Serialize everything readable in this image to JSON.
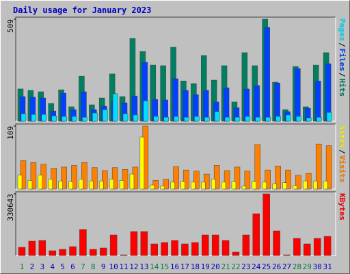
{
  "title": "Daily usage for January 2023",
  "legend_separator": "/",
  "chart_data": [
    {
      "type": "bar",
      "ylim": [
        0,
        509
      ],
      "yticks": [
        509
      ],
      "series": [
        {
          "name": "Hits",
          "color": "#008060",
          "values": [
            161,
            154,
            147,
            89,
            157,
            72,
            225,
            82,
            116,
            236,
            123,
            413,
            348,
            280,
            277,
            369,
            201,
            188,
            328,
            205,
            277,
            96,
            342,
            277,
            509,
            195,
            58,
            273,
            72,
            280,
            342
          ]
        },
        {
          "name": "Files",
          "color": "#0040ff",
          "values": [
            123,
            120,
            116,
            51,
            140,
            58,
            147,
            58,
            75,
            99,
            92,
            126,
            294,
            109,
            106,
            212,
            154,
            133,
            154,
            96,
            167,
            68,
            161,
            178,
            468,
            191,
            48,
            263,
            65,
            201,
            287
          ]
        },
        {
          "name": "Pages",
          "color": "#00e0ff",
          "values": [
            38,
            34,
            34,
            27,
            24,
            24,
            20,
            41,
            58,
            137,
            38,
            31,
            102,
            24,
            20,
            24,
            20,
            24,
            20,
            48,
            20,
            20,
            24,
            20,
            20,
            24,
            31,
            24,
            17,
            20,
            44
          ]
        }
      ]
    },
    {
      "type": "bar",
      "ylim": [
        0,
        109
      ],
      "yticks": [
        109
      ],
      "series": [
        {
          "name": "Visits",
          "color": "#ff8000",
          "values": [
            49,
            46,
            43,
            36,
            38,
            41,
            46,
            37,
            32,
            37,
            34,
            38,
            109,
            15,
            17,
            39,
            33,
            31,
            26,
            41,
            32,
            38,
            31,
            77,
            33,
            40,
            33,
            24,
            27,
            78,
            75
          ]
        },
        {
          "name": "Sites",
          "color": "#ffff00",
          "values": [
            24,
            15,
            24,
            17,
            14,
            13,
            17,
            14,
            14,
            17,
            15,
            26,
            90,
            7,
            5,
            12,
            13,
            12,
            12,
            17,
            12,
            13,
            5,
            13,
            12,
            9,
            11,
            6,
            14,
            14,
            14
          ]
        }
      ]
    },
    {
      "type": "bar",
      "ylim": [
        0,
        330643
      ],
      "yticks": [
        330643
      ],
      "categories": [
        "1",
        "2",
        "3",
        "4",
        "5",
        "6",
        "7",
        "8",
        "9",
        "10",
        "11",
        "12",
        "13",
        "14",
        "15",
        "16",
        "17",
        "18",
        "19",
        "20",
        "21",
        "22",
        "23",
        "24",
        "25",
        "26",
        "27",
        "28",
        "29",
        "30",
        "31"
      ],
      "category_colors": [
        "#008040",
        "#0000c0",
        "#0000c0",
        "#0000c0",
        "#0000c0",
        "#0000c0",
        "#008040",
        "#008040",
        "#0000c0",
        "#0000c0",
        "#0000c0",
        "#0000c0",
        "#0000c0",
        "#008040",
        "#008040",
        "#0000c0",
        "#0000c0",
        "#0000c0",
        "#0000c0",
        "#0000c0",
        "#008040",
        "#008040",
        "#0000c0",
        "#0000c0",
        "#0000c0",
        "#0000c0",
        "#0000c0",
        "#008040",
        "#008040",
        "#0000c0",
        "#0000c0"
      ],
      "series": [
        {
          "name": "KBytes",
          "color": "#ff0000",
          "values": [
            44088,
            77154,
            80828,
            25718,
            33066,
            47762,
            139612,
            33066,
            40414,
            110220,
            3674,
            128590,
            128590,
            62458,
            69806,
            80828,
            62458,
            69806,
            110220,
            110220,
            80828,
            18370,
            110220,
            224114,
            330643,
            132264,
            3674,
            91850,
            62458,
            91850,
            102872
          ]
        }
      ]
    }
  ]
}
